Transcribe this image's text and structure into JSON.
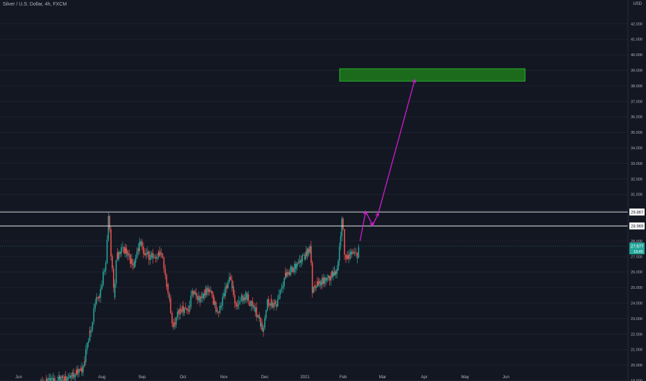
{
  "header": {
    "title": "Silver / U.S. Dollar, 4h, FXCM",
    "currency": "USD"
  },
  "chart_data": {
    "type": "candlestick",
    "price_axis": {
      "ticks": [
        "42.000",
        "41.000",
        "40.000",
        "39.000",
        "38.000",
        "37.000",
        "36.000",
        "35.000",
        "34.000",
        "33.000",
        "32.000",
        "31.000",
        "30.000",
        "29.000",
        "28.000",
        "27.000",
        "26.000",
        "25.000",
        "24.000",
        "23.000",
        "22.000",
        "21.000",
        "20.000",
        "19.000"
      ],
      "ylim": [
        19.0,
        42.0
      ]
    },
    "time_axis": {
      "ticks": [
        "Jun",
        "Jul",
        "Aug",
        "Sep",
        "Oct",
        "Nov",
        "Dec",
        "2021",
        "Feb",
        "Mar",
        "Apr",
        "May",
        "Jun"
      ]
    },
    "horizontal_lines": [
      {
        "label": "29.867",
        "value": 29.867
      },
      {
        "label": "28.969",
        "value": 28.969
      }
    ],
    "last_price": {
      "label": "27.677",
      "sub_label": "19:45",
      "value": 27.677
    },
    "target_zone": {
      "low": 38.3,
      "high": 39.1,
      "x_start": "2021-02-01",
      "x_end": "2021-06-15"
    },
    "projection_path": [
      {
        "x": "2021-02-13",
        "y": 28.0
      },
      {
        "x": "2021-02-17",
        "y": 29.9
      },
      {
        "x": "2021-02-22",
        "y": 29.0
      },
      {
        "x": "2021-02-26",
        "y": 29.8
      },
      {
        "x": "2021-03-25",
        "y": 38.4
      }
    ],
    "price_path_anchors": [
      {
        "x": "2020-06-15",
        "y": 18.8
      },
      {
        "x": "2020-07-03",
        "y": 19.0
      },
      {
        "x": "2020-07-18",
        "y": 19.7
      },
      {
        "x": "2020-07-24",
        "y": 22.3
      },
      {
        "x": "2020-07-28",
        "y": 24.0
      },
      {
        "x": "2020-07-31",
        "y": 24.5
      },
      {
        "x": "2020-08-05",
        "y": 27.0
      },
      {
        "x": "2020-08-07",
        "y": 29.6
      },
      {
        "x": "2020-08-11",
        "y": 24.5
      },
      {
        "x": "2020-08-13",
        "y": 27.0
      },
      {
        "x": "2020-08-18",
        "y": 27.5
      },
      {
        "x": "2020-08-26",
        "y": 26.5
      },
      {
        "x": "2020-09-01",
        "y": 28.2
      },
      {
        "x": "2020-09-03",
        "y": 27.1
      },
      {
        "x": "2020-09-10",
        "y": 27.0
      },
      {
        "x": "2020-09-16",
        "y": 27.2
      },
      {
        "x": "2020-09-21",
        "y": 24.5
      },
      {
        "x": "2020-09-24",
        "y": 22.4
      },
      {
        "x": "2020-09-29",
        "y": 23.6
      },
      {
        "x": "2020-10-06",
        "y": 23.5
      },
      {
        "x": "2020-10-09",
        "y": 24.8
      },
      {
        "x": "2020-10-14",
        "y": 24.2
      },
      {
        "x": "2020-10-21",
        "y": 25.0
      },
      {
        "x": "2020-10-28",
        "y": 23.3
      },
      {
        "x": "2020-11-06",
        "y": 25.6
      },
      {
        "x": "2020-11-10",
        "y": 23.9
      },
      {
        "x": "2020-11-18",
        "y": 24.5
      },
      {
        "x": "2020-11-26",
        "y": 23.3
      },
      {
        "x": "2020-11-30",
        "y": 22.3
      },
      {
        "x": "2020-12-04",
        "y": 24.2
      },
      {
        "x": "2020-12-10",
        "y": 23.8
      },
      {
        "x": "2020-12-17",
        "y": 25.8
      },
      {
        "x": "2020-12-28",
        "y": 26.5
      },
      {
        "x": "2021-01-06",
        "y": 27.6
      },
      {
        "x": "2021-01-08",
        "y": 24.8
      },
      {
        "x": "2021-01-12",
        "y": 25.3
      },
      {
        "x": "2021-01-20",
        "y": 25.5
      },
      {
        "x": "2021-01-28",
        "y": 26.2
      },
      {
        "x": "2021-02-01",
        "y": 29.5
      },
      {
        "x": "2021-02-03",
        "y": 26.6
      },
      {
        "x": "2021-02-05",
        "y": 27.0
      },
      {
        "x": "2021-02-08",
        "y": 27.3
      },
      {
        "x": "2021-02-11",
        "y": 27.0
      },
      {
        "x": "2021-02-13",
        "y": 27.677
      }
    ],
    "colors": {
      "background": "#131722",
      "up": "#26a69a",
      "down": "#ef5350",
      "zone_fill": "#1c6b1c",
      "zone_border": "#27b52b",
      "projection": "#d51bd5",
      "hline": "#ffffff",
      "last_price_bg": "#26a69a",
      "axis_text": "#b2b5be",
      "grid": "#1e2230"
    }
  }
}
